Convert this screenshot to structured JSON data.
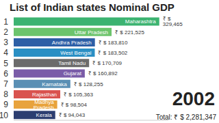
{
  "chart_data": {
    "type": "bar",
    "orientation": "horizontal",
    "title": "List of Indian states Nominal GDP",
    "categories": [
      "Maharashtra",
      "Uttar Pradesh",
      "Andhra Pradesh",
      "West Bengal",
      "Tamil Nadu",
      "Gujarat",
      "Karnataka",
      "Rajasthan",
      "Madhya Pradesh",
      "Kerala"
    ],
    "ranks": [
      "1",
      "2",
      "3",
      "4",
      "5",
      "6",
      "7",
      "8",
      "9",
      "10"
    ],
    "values": [
      329465,
      221525,
      183810,
      183502,
      170709,
      160892,
      128255,
      105363,
      98504,
      94043
    ],
    "value_labels": [
      "₹ $ 329,465",
      "₹ $ 221,525",
      "₹ $ 183,810",
      "₹ $ 183,502",
      "₹ $ 170,709",
      "₹ $ 160,892",
      "₹ $ 128,255",
      "₹ $ 105,363",
      "₹ $ 98,504",
      "₹ $ 94,043"
    ],
    "colors": [
      "#3cb371",
      "#6cc46c",
      "#2d5fa6",
      "#2a8fc4",
      "#6b6b6b",
      "#7a5ca8",
      "#5a8fb4",
      "#d9534f",
      "#e8a33d",
      "#2c3e70"
    ],
    "xlim": [
      0,
      350000
    ],
    "tick_labels": "y",
    "data_labels": true,
    "annotations": [
      "2002",
      "Total: ₹ $ 2,281,347"
    ]
  }
}
